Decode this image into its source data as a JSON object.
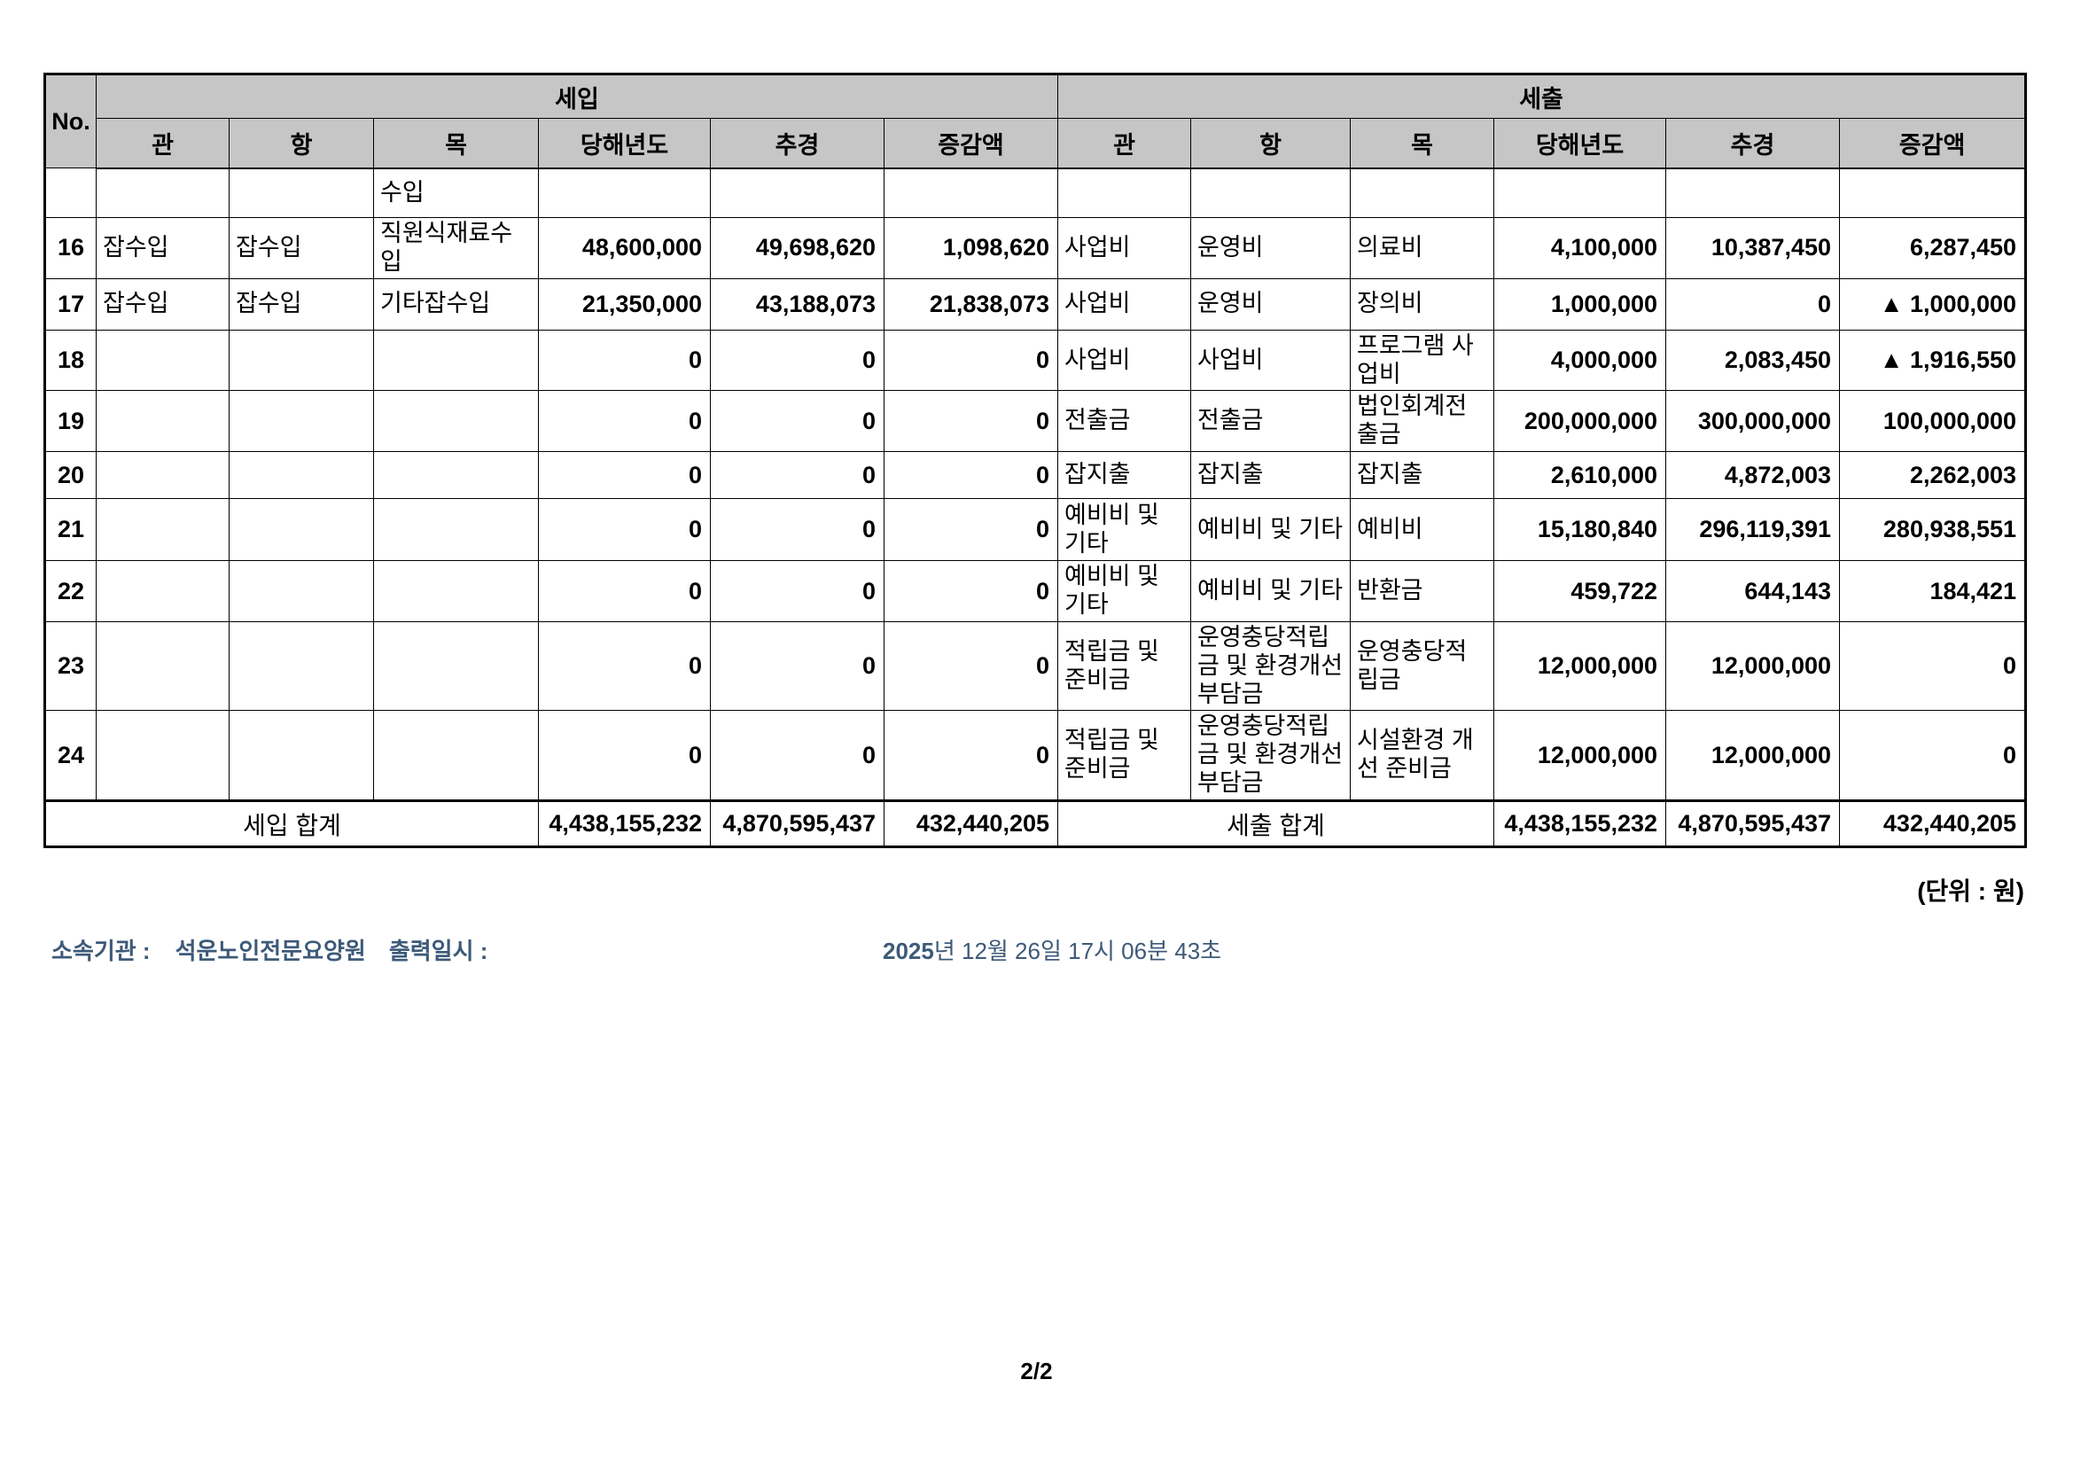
{
  "page": {
    "unit_note": "(단위 : 원)",
    "meta": {
      "org_label": "소속기관 :",
      "org_value": "석운노인전문요양원",
      "print_label": "출력일시 :",
      "print_value_bold": "2025",
      "print_value_rest": "년 12월 26일 17시 06분 43초"
    },
    "page_number": "2/2"
  },
  "table": {
    "col_no": "No.",
    "group_headers": [
      "세입",
      "세출"
    ],
    "sub_headers": [
      "관",
      "항",
      "목",
      "당해년도",
      "추경",
      "증감액",
      "관",
      "항",
      "목",
      "당해년도",
      "추경",
      "증감액"
    ],
    "rows": [
      {
        "no": "",
        "in": [
          "",
          "",
          "수입",
          "",
          "",
          ""
        ],
        "out": [
          "",
          "",
          "",
          "",
          "",
          ""
        ]
      },
      {
        "no": "16",
        "in": [
          "잡수입",
          "잡수입",
          "직원식재료수입",
          "48,600,000",
          "49,698,620",
          "1,098,620"
        ],
        "out": [
          "사업비",
          "운영비",
          "의료비",
          "4,100,000",
          "10,387,450",
          "6,287,450"
        ]
      },
      {
        "no": "17",
        "in": [
          "잡수입",
          "잡수입",
          "기타잡수입",
          "21,350,000",
          "43,188,073",
          "21,838,073"
        ],
        "out": [
          "사업비",
          "운영비",
          "장의비",
          "1,000,000",
          "0",
          "▲ 1,000,000"
        ]
      },
      {
        "no": "18",
        "in": [
          "",
          "",
          "",
          "0",
          "0",
          "0"
        ],
        "out": [
          "사업비",
          "사업비",
          "프로그램 사업비",
          "4,000,000",
          "2,083,450",
          "▲ 1,916,550"
        ]
      },
      {
        "no": "19",
        "in": [
          "",
          "",
          "",
          "0",
          "0",
          "0"
        ],
        "out": [
          "전출금",
          "전출금",
          "법인회계전출금",
          "200,000,000",
          "300,000,000",
          "100,000,000"
        ]
      },
      {
        "no": "20",
        "in": [
          "",
          "",
          "",
          "0",
          "0",
          "0"
        ],
        "out": [
          "잡지출",
          "잡지출",
          "잡지출",
          "2,610,000",
          "4,872,003",
          "2,262,003"
        ]
      },
      {
        "no": "21",
        "in": [
          "",
          "",
          "",
          "0",
          "0",
          "0"
        ],
        "out": [
          "예비비 및 기타",
          "예비비 및 기타",
          "예비비",
          "15,180,840",
          "296,119,391",
          "280,938,551"
        ]
      },
      {
        "no": "22",
        "in": [
          "",
          "",
          "",
          "0",
          "0",
          "0"
        ],
        "out": [
          "예비비 및 기타",
          "예비비 및 기타",
          "반환금",
          "459,722",
          "644,143",
          "184,421"
        ]
      },
      {
        "no": "23",
        "in": [
          "",
          "",
          "",
          "0",
          "0",
          "0"
        ],
        "out": [
          "적립금 및 준비금",
          "운영충당적립금 및 환경개선부담금",
          "운영충당적립금",
          "12,000,000",
          "12,000,000",
          "0"
        ]
      },
      {
        "no": "24",
        "in": [
          "",
          "",
          "",
          "0",
          "0",
          "0"
        ],
        "out": [
          "적립금 및 준비금",
          "운영충당적립금 및 환경개선부담금",
          "시설환경 개선 준비금",
          "12,000,000",
          "12,000,000",
          "0"
        ]
      }
    ],
    "totals": {
      "in_label": "세입 합계",
      "in_values": [
        "4,438,155,232",
        "4,870,595,437",
        "432,440,205"
      ],
      "out_label": "세출 합계",
      "out_values": [
        "4,438,155,232",
        "4,870,595,437",
        "432,440,205"
      ]
    },
    "colors": {
      "header_bg": "#c6c6c6",
      "border": "#000000",
      "meta_text": "#3d5a78"
    }
  }
}
